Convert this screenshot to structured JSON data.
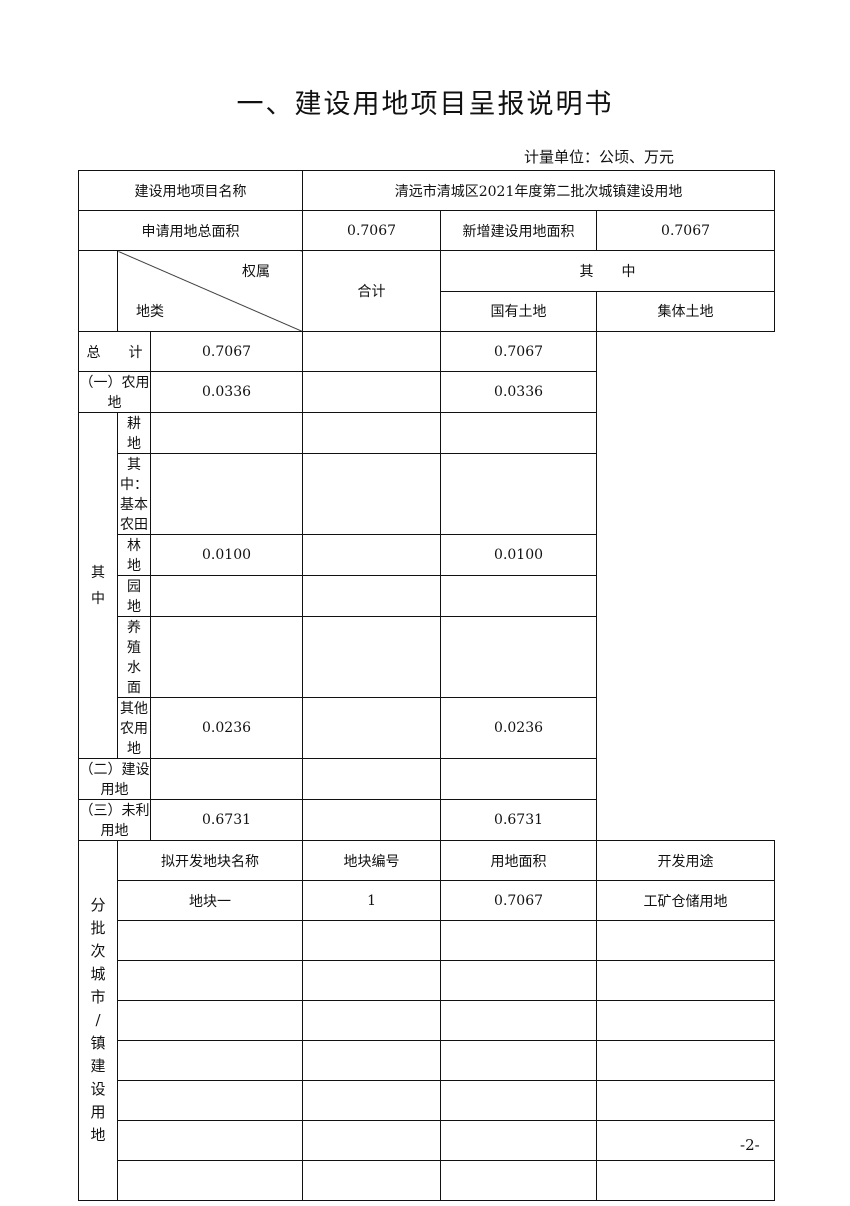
{
  "title": "一、建设用地项目呈报说明书",
  "unit": "计量单位：公顷、万元",
  "project": {
    "name_label": "建设用地项目名称",
    "name_value": "清远市清城区2021年度第二批次城镇建设用地",
    "total_area_label": "申请用地总面积",
    "total_area": "0.7067",
    "new_area_label": "新增建设用地面积",
    "new_area": "0.7067"
  },
  "header": {
    "ownership": "权属",
    "land_type": "地类",
    "total": "合计",
    "of_which": "其　　中",
    "state": "国有土地",
    "collective": "集体土地"
  },
  "rows": [
    {
      "label": "总　　计",
      "total": "0.7067",
      "state": "",
      "collective": "0.7067"
    },
    {
      "label": "（一）农用地",
      "total": "0.0336",
      "state": "",
      "collective": "0.0336"
    },
    {
      "label": "耕　　　地",
      "total": "",
      "state": "",
      "collective": ""
    },
    {
      "label": "其中：基本农田",
      "total": "",
      "state": "",
      "collective": ""
    },
    {
      "label": "林　　　地",
      "total": "0.0100",
      "state": "",
      "collective": "0.0100"
    },
    {
      "label": "园　　　地",
      "total": "",
      "state": "",
      "collective": ""
    },
    {
      "label": "养 殖 水 面",
      "total": "",
      "state": "",
      "collective": ""
    },
    {
      "label": "其他农用地",
      "total": "0.0236",
      "state": "",
      "collective": "0.0236"
    },
    {
      "label": "（二）建设用地",
      "total": "",
      "state": "",
      "collective": ""
    },
    {
      "label": "（三）未利用地",
      "total": "0.6731",
      "state": "",
      "collective": "0.6731"
    }
  ],
  "of_which_vertical": "其中",
  "parcels": {
    "section_label": "分批次城市/镇建设用地",
    "headers": [
      "拟开发地块名称",
      "地块编号",
      "用地面积",
      "开发用途"
    ],
    "rows": [
      [
        "地块一",
        "1",
        "0.7067",
        "工矿仓储用地"
      ],
      [
        "",
        "",
        "",
        ""
      ],
      [
        "",
        "",
        "",
        ""
      ],
      [
        "",
        "",
        "",
        ""
      ],
      [
        "",
        "",
        "",
        ""
      ],
      [
        "",
        "",
        "",
        ""
      ],
      [
        "",
        "",
        "",
        ""
      ],
      [
        "",
        "",
        "",
        ""
      ]
    ]
  },
  "page_number": "-2-"
}
